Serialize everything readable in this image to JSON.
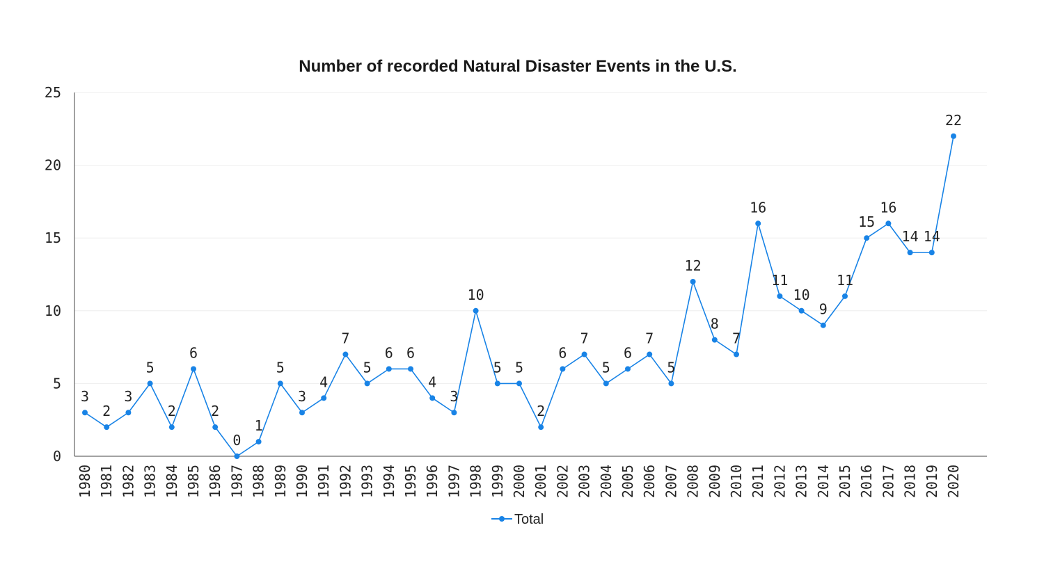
{
  "chart_data": {
    "type": "line",
    "title": "Number of recorded Natural Disaster Events in the U.S.",
    "xlabel": "",
    "ylabel": "",
    "ylim": [
      0,
      25
    ],
    "yticks": [
      0,
      5,
      10,
      15,
      20,
      25
    ],
    "grid": true,
    "legend_position": "bottom",
    "categories": [
      "1980",
      "1981",
      "1982",
      "1983",
      "1984",
      "1985",
      "1986",
      "1987",
      "1988",
      "1989",
      "1990",
      "1991",
      "1992",
      "1993",
      "1994",
      "1995",
      "1996",
      "1997",
      "1998",
      "1999",
      "2000",
      "2001",
      "2002",
      "2003",
      "2004",
      "2005",
      "2006",
      "2007",
      "2008",
      "2009",
      "2010",
      "2011",
      "2012",
      "2013",
      "2014",
      "2015",
      "2016",
      "2017",
      "2018",
      "2019",
      "2020"
    ],
    "series": [
      {
        "name": "Total",
        "color": "#1883e6",
        "values": [
          3,
          2,
          3,
          5,
          2,
          6,
          2,
          0,
          1,
          5,
          3,
          4,
          7,
          5,
          6,
          6,
          4,
          3,
          10,
          5,
          5,
          2,
          6,
          7,
          5,
          6,
          7,
          5,
          12,
          8,
          7,
          16,
          11,
          10,
          9,
          11,
          15,
          16,
          14,
          14,
          22
        ]
      }
    ]
  }
}
